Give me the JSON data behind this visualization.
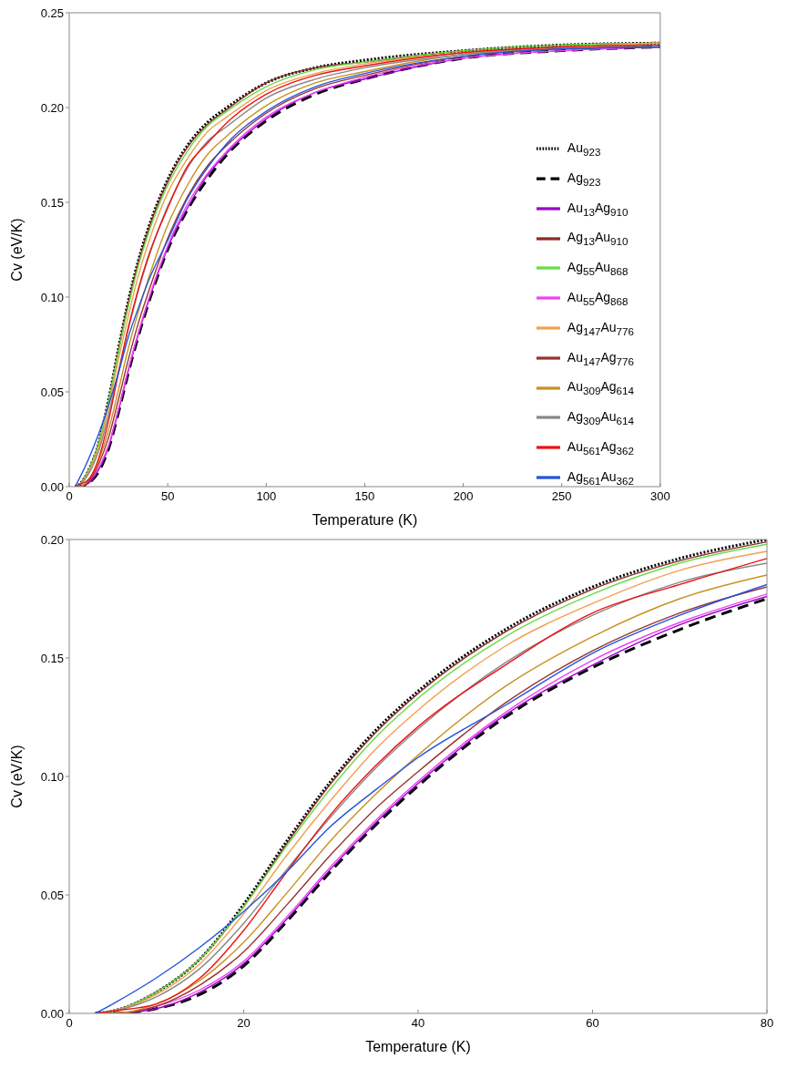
{
  "chart_data": [
    {
      "type": "line",
      "xlabel": "Temperature (K)",
      "ylabel": "Cv (eV/K)",
      "xlim": [
        0,
        300
      ],
      "xticks": [
        0,
        50,
        100,
        150,
        200,
        250,
        300
      ],
      "ylim": [
        0,
        0.25
      ],
      "yticks": [
        {
          "value": 0,
          "label": "0.00"
        },
        {
          "value": 0.05,
          "label": "0.05"
        },
        {
          "value": 0.1,
          "label": "0.10"
        },
        {
          "value": 0.15,
          "label": "0.15"
        },
        {
          "value": 0.2,
          "label": "0.20"
        },
        {
          "value": 0.25,
          "label": "0.25"
        }
      ],
      "grid": false,
      "legend": "right",
      "marker": "none",
      "x": [
        3,
        5,
        10,
        15,
        20,
        25,
        30,
        35,
        40,
        50,
        60,
        70,
        80,
        100,
        125,
        150,
        200,
        250,
        300
      ],
      "series": [
        {
          "name": "Au$_{923}$",
          "color": "#000000",
          "line_style": "dotted",
          "values": [
            0,
            0.001,
            0.009,
            0.023,
            0.046,
            0.073,
            0.098,
            0.119,
            0.136,
            0.162,
            0.18,
            0.192,
            0.2,
            0.213,
            0.221,
            0.225,
            0.23,
            0.233,
            0.234
          ]
        },
        {
          "name": "Ag$_{923}$",
          "color": "#000000",
          "line_style": "dashed",
          "values": [
            0,
            0,
            0.002,
            0.008,
            0.02,
            0.039,
            0.06,
            0.079,
            0.096,
            0.125,
            0.146,
            0.162,
            0.175,
            0.193,
            0.207,
            0.215,
            0.226,
            0.23,
            0.232
          ]
        },
        {
          "name": "Au$_{13}$Ag$_{910}$",
          "color": "#9900cc",
          "line_style": "solid",
          "values": [
            0,
            0,
            0.002,
            0.009,
            0.021,
            0.04,
            0.061,
            0.08,
            0.097,
            0.126,
            0.147,
            0.164,
            0.176,
            0.194,
            0.208,
            0.215,
            0.226,
            0.23,
            0.232
          ]
        },
        {
          "name": "Ag$_{13}$Au$_{910}$",
          "color": "#8b2a2a",
          "line_style": "solid",
          "values": [
            0,
            0.001,
            0.009,
            0.023,
            0.045,
            0.072,
            0.097,
            0.118,
            0.135,
            0.161,
            0.179,
            0.191,
            0.199,
            0.213,
            0.221,
            0.224,
            0.23,
            0.233,
            0.234
          ]
        },
        {
          "name": "Ag$_{55}$Au$_{868}$",
          "color": "#66dd44",
          "line_style": "solid",
          "values": [
            0,
            0.001,
            0.009,
            0.023,
            0.045,
            0.071,
            0.095,
            0.116,
            0.133,
            0.159,
            0.177,
            0.19,
            0.198,
            0.211,
            0.22,
            0.224,
            0.23,
            0.233,
            0.234
          ]
        },
        {
          "name": "Au$_{55}$Ag$_{868}$",
          "color": "#ee44ee",
          "line_style": "solid",
          "values": [
            0,
            0,
            0.003,
            0.01,
            0.022,
            0.041,
            0.062,
            0.081,
            0.098,
            0.127,
            0.149,
            0.165,
            0.177,
            0.195,
            0.208,
            0.216,
            0.226,
            0.23,
            0.232
          ]
        },
        {
          "name": "Ag$_{147}$Au$_{776}$",
          "color": "#f0a050",
          "line_style": "solid",
          "values": [
            0,
            0.001,
            0.008,
            0.021,
            0.042,
            0.067,
            0.09,
            0.111,
            0.128,
            0.155,
            0.173,
            0.187,
            0.195,
            0.209,
            0.218,
            0.223,
            0.229,
            0.232,
            0.234
          ]
        },
        {
          "name": "Au$_{147}$Ag$_{776}$",
          "color": "#993333",
          "line_style": "solid",
          "values": [
            0,
            0,
            0.003,
            0.012,
            0.026,
            0.046,
            0.067,
            0.086,
            0.102,
            0.131,
            0.153,
            0.169,
            0.18,
            0.197,
            0.21,
            0.217,
            0.227,
            0.231,
            0.232
          ]
        },
        {
          "name": "Au$_{309}$Ag$_{614}$",
          "color": "#c89020",
          "line_style": "solid",
          "values": [
            0,
            0,
            0.004,
            0.014,
            0.03,
            0.051,
            0.073,
            0.092,
            0.109,
            0.138,
            0.159,
            0.175,
            0.185,
            0.201,
            0.213,
            0.219,
            0.228,
            0.231,
            0.233
          ]
        },
        {
          "name": "Ag$_{309}$Au$_{614}$",
          "color": "#888888",
          "line_style": "solid",
          "values": [
            0,
            0.001,
            0.007,
            0.019,
            0.038,
            0.061,
            0.083,
            0.103,
            0.12,
            0.148,
            0.168,
            0.182,
            0.19,
            0.205,
            0.215,
            0.221,
            0.228,
            0.232,
            0.233
          ]
        },
        {
          "name": "Au$_{561}$Ag$_{362}$",
          "color": "#ee1111",
          "line_style": "solid",
          "values": [
            0,
            0.001,
            0.004,
            0.015,
            0.035,
            0.06,
            0.084,
            0.104,
            0.121,
            0.147,
            0.169,
            0.181,
            0.192,
            0.207,
            0.217,
            0.222,
            0.229,
            0.232,
            0.233
          ]
        },
        {
          "name": "Ag$_{561}$Au$_{362}$",
          "color": "#2255dd",
          "line_style": "solid",
          "values": [
            0,
            0.004,
            0.015,
            0.028,
            0.043,
            0.06,
            0.079,
            0.094,
            0.108,
            0.13,
            0.152,
            0.168,
            0.181,
            0.198,
            0.211,
            0.218,
            0.227,
            0.231,
            0.232
          ]
        }
      ]
    },
    {
      "type": "line",
      "xlabel": "Temperature (K)",
      "ylabel": "Cv (eV/K)",
      "xlim": [
        0,
        80
      ],
      "xticks": [
        0,
        20,
        40,
        60,
        80
      ],
      "ylim": [
        0,
        0.2
      ],
      "yticks": [
        {
          "value": 0,
          "label": "0.00"
        },
        {
          "value": 0.05,
          "label": "0.05"
        },
        {
          "value": 0.1,
          "label": "0.10"
        },
        {
          "value": 0.15,
          "label": "0.15"
        },
        {
          "value": 0.2,
          "label": "0.20"
        }
      ],
      "grid": false,
      "marker": "none",
      "x": [
        3,
        5,
        10,
        15,
        20,
        25,
        30,
        35,
        40,
        50,
        60,
        70,
        80
      ],
      "series": [
        {
          "color": "#000000",
          "line_style": "dotted",
          "values": [
            0,
            0.001,
            0.009,
            0.023,
            0.046,
            0.073,
            0.098,
            0.119,
            0.136,
            0.162,
            0.18,
            0.192,
            0.2
          ]
        },
        {
          "color": "#000000",
          "line_style": "dashed",
          "values": [
            0,
            0,
            0.002,
            0.008,
            0.02,
            0.039,
            0.06,
            0.079,
            0.096,
            0.125,
            0.146,
            0.162,
            0.175
          ]
        },
        {
          "color": "#9900cc",
          "line_style": "solid",
          "values": [
            0,
            0,
            0.002,
            0.009,
            0.021,
            0.04,
            0.061,
            0.08,
            0.097,
            0.126,
            0.147,
            0.164,
            0.176
          ]
        },
        {
          "color": "#8b2a2a",
          "line_style": "solid",
          "values": [
            0,
            0.001,
            0.009,
            0.023,
            0.045,
            0.072,
            0.097,
            0.118,
            0.135,
            0.161,
            0.179,
            0.191,
            0.199
          ]
        },
        {
          "color": "#66dd44",
          "line_style": "solid",
          "values": [
            0,
            0.001,
            0.009,
            0.023,
            0.045,
            0.071,
            0.095,
            0.116,
            0.133,
            0.159,
            0.177,
            0.19,
            0.198
          ]
        },
        {
          "color": "#ee44ee",
          "line_style": "solid",
          "values": [
            0,
            0,
            0.003,
            0.01,
            0.022,
            0.041,
            0.062,
            0.081,
            0.098,
            0.127,
            0.149,
            0.165,
            0.177
          ]
        },
        {
          "color": "#f0a050",
          "line_style": "solid",
          "values": [
            0,
            0.001,
            0.008,
            0.021,
            0.042,
            0.067,
            0.09,
            0.111,
            0.128,
            0.155,
            0.173,
            0.187,
            0.195
          ]
        },
        {
          "color": "#993333",
          "line_style": "solid",
          "values": [
            0,
            0,
            0.003,
            0.012,
            0.026,
            0.046,
            0.067,
            0.086,
            0.102,
            0.131,
            0.153,
            0.169,
            0.18
          ]
        },
        {
          "color": "#c89020",
          "line_style": "solid",
          "values": [
            0,
            0,
            0.004,
            0.014,
            0.03,
            0.051,
            0.073,
            0.092,
            0.109,
            0.138,
            0.159,
            0.175,
            0.185
          ]
        },
        {
          "color": "#888888",
          "line_style": "solid",
          "values": [
            0,
            0.001,
            0.007,
            0.019,
            0.038,
            0.061,
            0.083,
            0.103,
            0.12,
            0.148,
            0.168,
            0.182,
            0.19
          ]
        },
        {
          "color": "#ee1111",
          "line_style": "solid",
          "values": [
            0,
            0.001,
            0.004,
            0.015,
            0.035,
            0.06,
            0.084,
            0.104,
            0.121,
            0.147,
            0.169,
            0.181,
            0.192
          ]
        },
        {
          "color": "#2255dd",
          "line_style": "solid",
          "values": [
            0,
            0.004,
            0.015,
            0.028,
            0.043,
            0.06,
            0.079,
            0.094,
            0.108,
            0.13,
            0.152,
            0.168,
            0.181
          ]
        }
      ]
    }
  ]
}
